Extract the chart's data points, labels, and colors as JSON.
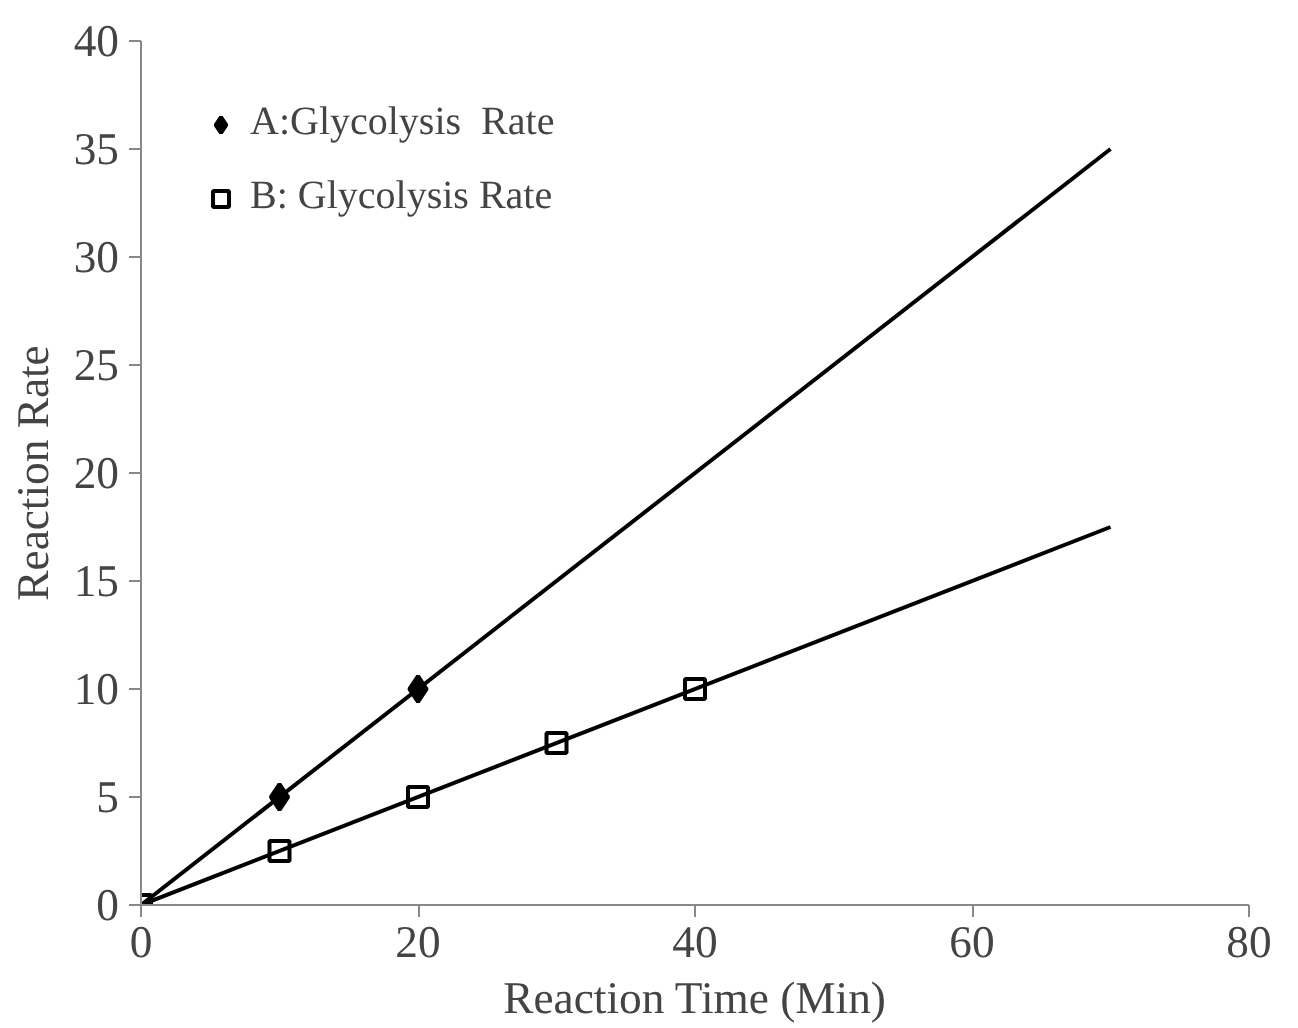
{
  "chart_data": {
    "type": "scatter",
    "xlabel": "Reaction Time (Min)",
    "ylabel": "Reaction Rate",
    "xlim": [
      0,
      80
    ],
    "xticks": [
      0,
      20,
      40,
      60,
      80
    ],
    "ylim": [
      0,
      40
    ],
    "yticks": [
      0,
      5,
      10,
      15,
      20,
      25,
      30,
      35,
      40
    ],
    "grid": false,
    "legend": "top left",
    "series": [
      {
        "name": "A:Glycolysis  Rate",
        "marker": "diamond",
        "color": "#000000",
        "x": [
          10,
          20
        ],
        "values": [
          5,
          10
        ]
      },
      {
        "name": "B: Glycolysis Rate",
        "marker": "square",
        "color": "#000000",
        "x": [
          0,
          10,
          20,
          30,
          40
        ],
        "values": [
          0,
          2.5,
          5,
          7.5,
          10
        ]
      },
      {
        "type": "line",
        "color": "#000000",
        "x": [
          0,
          70
        ],
        "values": [
          0,
          35
        ]
      },
      {
        "type": "line",
        "color": "#000000",
        "x": [
          0,
          70
        ],
        "values": [
          0,
          17.5
        ]
      }
    ]
  }
}
